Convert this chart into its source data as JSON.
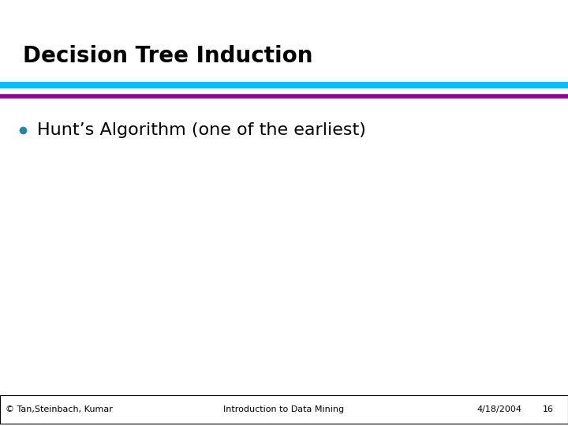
{
  "title": "Decision Tree Induction",
  "title_fontsize": 20,
  "title_color": "#000000",
  "title_fontweight": "bold",
  "bullet_text": "Hunt’s Algorithm (one of the earliest)",
  "bullet_fontsize": 16,
  "bullet_color": "#000000",
  "bullet_dot_color": "#2288AA",
  "line1_color": "#00BFFF",
  "line2_color": "#990099",
  "footer_left": "© Tan,Steinbach, Kumar",
  "footer_center": "Introduction to Data Mining",
  "footer_right": "4/18/2004",
  "footer_page": "16",
  "footer_fontsize": 8,
  "footer_color": "#000000",
  "background_color": "#FFFFFF"
}
